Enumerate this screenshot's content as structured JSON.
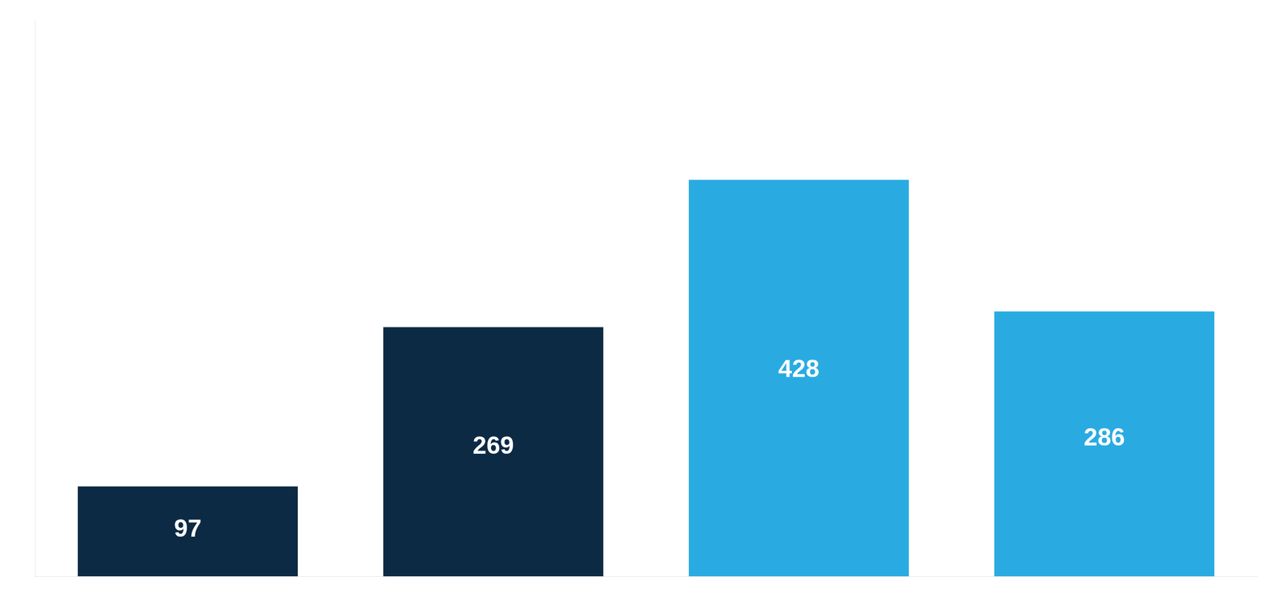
{
  "chart_data": {
    "type": "bar",
    "categories": [
      null,
      null,
      null,
      null
    ],
    "values": [
      97,
      269,
      428,
      286
    ],
    "colors": [
      "#0d2a45",
      "#0d2a45",
      "#29abe2",
      "#29abe2"
    ],
    "ylim": [
      0,
      600
    ],
    "data_labels": true,
    "tick_labels": false,
    "grid": false
  }
}
